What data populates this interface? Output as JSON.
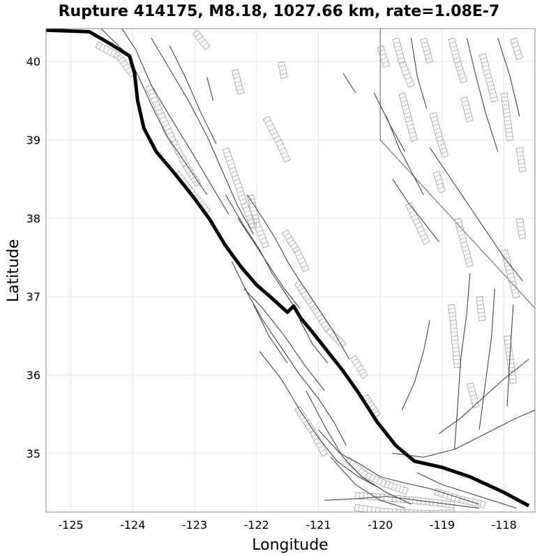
{
  "title": "Rupture 414175, M8.18, 1027.66 km, rate=1.08E-7",
  "x_axis": {
    "label": "Longitude",
    "range": [
      -125.4,
      -117.5
    ],
    "ticks": [
      -125,
      -124,
      -123,
      -122,
      -121,
      -120,
      -119,
      -118
    ],
    "tick_labels": [
      "-125",
      "-124",
      "-123",
      "-122",
      "-121",
      "-120",
      "-119",
      "-118"
    ]
  },
  "y_axis": {
    "label": "Latitude",
    "range": [
      34.25,
      40.42
    ],
    "ticks": [
      35,
      36,
      37,
      38,
      39,
      40
    ],
    "tick_labels": [
      "35",
      "36",
      "37",
      "38",
      "39",
      "40"
    ]
  },
  "grid": true,
  "colors": {
    "rupture": "#000000",
    "faults": "#444444",
    "fault_surfaces": "#aaaaaa",
    "state_border": "#777777",
    "grid": "#e4e4e4"
  },
  "rupture_trace": [
    [
      -125.4,
      40.4
    ],
    [
      -124.7,
      40.38
    ],
    [
      -124.35,
      40.22
    ],
    [
      -124.05,
      40.07
    ],
    [
      -123.97,
      39.85
    ],
    [
      -123.92,
      39.5
    ],
    [
      -123.82,
      39.15
    ],
    [
      -123.62,
      38.85
    ],
    [
      -123.3,
      38.55
    ],
    [
      -123.0,
      38.25
    ],
    [
      -122.75,
      37.98
    ],
    [
      -122.5,
      37.65
    ],
    [
      -122.25,
      37.38
    ],
    [
      -122.0,
      37.15
    ],
    [
      -121.78,
      37.0
    ],
    [
      -121.5,
      36.8
    ],
    [
      -121.4,
      36.88
    ],
    [
      -121.28,
      36.72
    ],
    [
      -121.1,
      36.55
    ],
    [
      -120.9,
      36.35
    ],
    [
      -120.6,
      36.05
    ],
    [
      -120.35,
      35.77
    ],
    [
      -120.05,
      35.4
    ],
    [
      -119.75,
      35.1
    ],
    [
      -119.45,
      34.9
    ],
    [
      -119.0,
      34.82
    ],
    [
      -118.55,
      34.7
    ],
    [
      -118.0,
      34.5
    ],
    [
      -117.6,
      34.33
    ]
  ],
  "fault_traces": [
    [
      [
        -124.55,
        40.45
      ],
      [
        -124.1,
        40.1
      ],
      [
        -123.9,
        39.8
      ],
      [
        -123.7,
        39.45
      ],
      [
        -123.45,
        39.05
      ],
      [
        -123.1,
        38.65
      ],
      [
        -122.8,
        38.3
      ]
    ],
    [
      [
        -124.2,
        40.45
      ],
      [
        -123.95,
        40.15
      ],
      [
        -123.7,
        39.7
      ],
      [
        -123.4,
        39.3
      ],
      [
        -123.05,
        38.85
      ],
      [
        -122.75,
        38.45
      ],
      [
        -122.45,
        38.05
      ]
    ],
    [
      [
        -123.7,
        40.3
      ],
      [
        -123.4,
        39.9
      ],
      [
        -123.1,
        39.5
      ],
      [
        -122.8,
        39.05
      ],
      [
        -122.55,
        38.6
      ],
      [
        -122.3,
        38.15
      ],
      [
        -122.05,
        37.8
      ]
    ],
    [
      [
        -123.4,
        40.2
      ],
      [
        -123.15,
        39.8
      ],
      [
        -122.9,
        39.35
      ],
      [
        -122.65,
        38.95
      ]
    ],
    [
      [
        -122.5,
        38.3
      ],
      [
        -122.2,
        37.9
      ],
      [
        -121.95,
        37.6
      ],
      [
        -121.75,
        37.3
      ],
      [
        -121.5,
        37.0
      ],
      [
        -121.25,
        36.7
      ]
    ],
    [
      [
        -122.3,
        38.0
      ],
      [
        -122.05,
        37.7
      ],
      [
        -121.8,
        37.4
      ],
      [
        -121.55,
        37.1
      ],
      [
        -121.3,
        36.85
      ]
    ],
    [
      [
        -122.15,
        38.3
      ],
      [
        -121.9,
        38.0
      ],
      [
        -121.7,
        37.75
      ],
      [
        -121.5,
        37.45
      ],
      [
        -121.3,
        37.2
      ],
      [
        -121.0,
        36.85
      ],
      [
        -120.75,
        36.55
      ],
      [
        -120.5,
        36.2
      ]
    ],
    [
      [
        -122.4,
        37.45
      ],
      [
        -122.15,
        37.05
      ],
      [
        -121.9,
        36.7
      ],
      [
        -121.6,
        36.35
      ],
      [
        -121.3,
        36.0
      ],
      [
        -121.0,
        35.7
      ],
      [
        -120.75,
        35.4
      ],
      [
        -120.55,
        35.1
      ]
    ],
    [
      [
        -122.2,
        37.1
      ],
      [
        -121.9,
        36.85
      ],
      [
        -121.55,
        36.5
      ],
      [
        -121.2,
        36.1
      ],
      [
        -120.9,
        35.8
      ]
    ],
    [
      [
        -121.95,
        36.3
      ],
      [
        -121.6,
        35.95
      ],
      [
        -121.3,
        35.55
      ],
      [
        -121.0,
        35.2
      ],
      [
        -120.7,
        34.9
      ],
      [
        -120.35,
        34.7
      ],
      [
        -120.0,
        34.55
      ]
    ],
    [
      [
        -121.2,
        35.8
      ],
      [
        -120.9,
        35.35
      ],
      [
        -120.6,
        34.95
      ],
      [
        -120.3,
        34.7
      ],
      [
        -119.9,
        34.5
      ],
      [
        -119.5,
        34.35
      ]
    ],
    [
      [
        -121.0,
        35.3
      ],
      [
        -120.65,
        35.0
      ],
      [
        -120.3,
        34.85
      ],
      [
        -120.0,
        34.7
      ],
      [
        -119.6,
        34.62
      ],
      [
        -119.2,
        34.55
      ],
      [
        -118.8,
        34.45
      ],
      [
        -118.4,
        34.35
      ]
    ],
    [
      [
        -120.8,
        34.95
      ],
      [
        -120.4,
        34.6
      ],
      [
        -120.0,
        34.4
      ],
      [
        -119.6,
        34.3
      ]
    ],
    [
      [
        -120.9,
        34.4
      ],
      [
        -120.4,
        34.42
      ],
      [
        -119.9,
        34.45
      ],
      [
        -119.4,
        34.4
      ],
      [
        -118.9,
        34.35
      ],
      [
        -118.4,
        34.3
      ]
    ],
    [
      [
        -119.4,
        34.75
      ],
      [
        -119.0,
        34.6
      ],
      [
        -118.6,
        34.5
      ],
      [
        -118.2,
        34.4
      ],
      [
        -117.8,
        34.3
      ]
    ],
    [
      [
        -119.8,
        35.0
      ],
      [
        -119.3,
        34.95
      ],
      [
        -118.8,
        35.05
      ],
      [
        -118.3,
        35.25
      ],
      [
        -117.8,
        35.45
      ],
      [
        -117.5,
        35.55
      ]
    ],
    [
      [
        -119.05,
        35.25
      ],
      [
        -118.7,
        35.45
      ],
      [
        -118.35,
        35.7
      ],
      [
        -118.0,
        35.95
      ],
      [
        -117.6,
        36.2
      ]
    ],
    [
      [
        -119.65,
        35.55
      ],
      [
        -119.45,
        35.9
      ],
      [
        -119.3,
        36.3
      ],
      [
        -119.2,
        36.7
      ]
    ],
    [
      [
        -118.8,
        35.05
      ],
      [
        -118.75,
        35.6
      ],
      [
        -118.7,
        36.2
      ],
      [
        -118.6,
        36.8
      ],
      [
        -118.55,
        37.3
      ]
    ],
    [
      [
        -118.4,
        35.3
      ],
      [
        -118.3,
        35.9
      ],
      [
        -118.2,
        36.5
      ],
      [
        -118.15,
        37.1
      ]
    ],
    [
      [
        -117.95,
        35.6
      ],
      [
        -117.9,
        36.3
      ],
      [
        -117.85,
        36.9
      ]
    ],
    [
      [
        -119.8,
        38.5
      ],
      [
        -119.55,
        38.2
      ],
      [
        -119.3,
        37.95
      ],
      [
        -119.05,
        37.7
      ]
    ],
    [
      [
        -119.2,
        38.9
      ],
      [
        -118.9,
        38.55
      ],
      [
        -118.6,
        38.2
      ],
      [
        -118.3,
        37.85
      ],
      [
        -118.0,
        37.5
      ],
      [
        -117.7,
        37.2
      ]
    ],
    [
      [
        -118.6,
        40.3
      ],
      [
        -118.45,
        39.8
      ],
      [
        -118.3,
        39.35
      ],
      [
        -118.1,
        38.85
      ]
    ],
    [
      [
        -119.5,
        40.3
      ],
      [
        -119.4,
        39.8
      ],
      [
        -119.25,
        39.4
      ]
    ],
    [
      [
        -118.1,
        40.3
      ],
      [
        -117.9,
        39.8
      ],
      [
        -117.75,
        39.3
      ]
    ],
    [
      [
        -120.1,
        39.6
      ],
      [
        -119.85,
        39.2
      ],
      [
        -119.6,
        38.85
      ]
    ],
    [
      [
        -119.9,
        39.3
      ],
      [
        -119.7,
        38.9
      ],
      [
        -119.5,
        38.6
      ],
      [
        -119.3,
        38.3
      ]
    ],
    [
      [
        -120.6,
        39.85
      ],
      [
        -120.4,
        39.6
      ]
    ],
    [
      [
        -122.8,
        39.8
      ],
      [
        -122.7,
        39.5
      ]
    ],
    [
      [
        -121.3,
        36.7
      ],
      [
        -121.1,
        36.4
      ],
      [
        -120.85,
        36.15
      ]
    ],
    [
      [
        -122.05,
        36.9
      ],
      [
        -121.8,
        36.5
      ],
      [
        -121.5,
        36.15
      ]
    ]
  ],
  "surface_strips": [
    [
      [
        -124.55,
        40.25
      ],
      [
        -124.2,
        40.1
      ],
      [
        -123.95,
        39.85
      ]
    ],
    [
      [
        -123.7,
        39.7
      ],
      [
        -123.5,
        39.35
      ],
      [
        -123.3,
        39.0
      ],
      [
        -123.1,
        38.7
      ],
      [
        -122.9,
        38.45
      ]
    ],
    [
      [
        -123.25,
        38.6
      ],
      [
        -122.95,
        38.3
      ],
      [
        -122.75,
        38.1
      ]
    ],
    [
      [
        -122.45,
        38.9
      ],
      [
        -122.3,
        38.55
      ],
      [
        -122.15,
        38.2
      ],
      [
        -122.0,
        37.9
      ]
    ],
    [
      [
        -122.05,
        38.3
      ],
      [
        -121.95,
        37.95
      ],
      [
        -121.8,
        37.65
      ]
    ],
    [
      [
        -121.5,
        37.85
      ],
      [
        -121.3,
        37.6
      ],
      [
        -121.15,
        37.35
      ]
    ],
    [
      [
        -121.3,
        37.2
      ],
      [
        -121.05,
        36.9
      ],
      [
        -120.8,
        36.6
      ],
      [
        -120.55,
        36.4
      ]
    ],
    [
      [
        -120.4,
        36.25
      ],
      [
        -120.2,
        36.0
      ]
    ],
    [
      [
        -120.2,
        35.75
      ],
      [
        -120.0,
        35.5
      ]
    ],
    [
      [
        -120.5,
        34.95
      ],
      [
        -120.2,
        34.75
      ],
      [
        -119.9,
        34.65
      ],
      [
        -119.55,
        34.55
      ]
    ],
    [
      [
        -120.4,
        34.5
      ],
      [
        -120.0,
        34.48
      ],
      [
        -119.6,
        34.45
      ],
      [
        -119.2,
        34.42
      ],
      [
        -118.8,
        34.38
      ]
    ],
    [
      [
        -120.4,
        34.35
      ],
      [
        -120.0,
        34.3
      ],
      [
        -119.6,
        34.28
      ],
      [
        -119.2,
        34.27
      ],
      [
        -118.8,
        34.28
      ]
    ],
    [
      [
        -119.1,
        34.55
      ],
      [
        -118.7,
        34.45
      ],
      [
        -118.3,
        34.38
      ]
    ],
    [
      [
        -121.3,
        35.6
      ],
      [
        -121.05,
        35.3
      ],
      [
        -120.85,
        35.0
      ]
    ],
    [
      [
        -122.95,
        40.4
      ],
      [
        -122.75,
        40.2
      ]
    ],
    [
      [
        -121.8,
        39.3
      ],
      [
        -121.6,
        39.0
      ],
      [
        -121.45,
        38.75
      ]
    ],
    [
      [
        -122.3,
        39.9
      ],
      [
        -122.2,
        39.6
      ]
    ],
    [
      [
        -121.55,
        40.0
      ],
      [
        -121.5,
        39.8
      ]
    ],
    [
      [
        -119.7,
        40.3
      ],
      [
        -119.6,
        40.0
      ],
      [
        -119.45,
        39.7
      ]
    ],
    [
      [
        -119.25,
        40.3
      ],
      [
        -119.15,
        40.0
      ]
    ],
    [
      [
        -118.8,
        40.3
      ],
      [
        -118.7,
        40.0
      ],
      [
        -118.6,
        39.75
      ]
    ],
    [
      [
        -118.3,
        40.1
      ],
      [
        -118.2,
        39.8
      ],
      [
        -118.1,
        39.5
      ]
    ],
    [
      [
        -117.8,
        40.3
      ],
      [
        -117.7,
        40.05
      ]
    ],
    [
      [
        -119.6,
        39.6
      ],
      [
        -119.5,
        39.3
      ],
      [
        -119.4,
        39.0
      ]
    ],
    [
      [
        -119.1,
        39.35
      ],
      [
        -119.0,
        39.05
      ],
      [
        -118.9,
        38.8
      ]
    ],
    [
      [
        -118.6,
        39.55
      ],
      [
        -118.5,
        39.25
      ]
    ],
    [
      [
        -117.95,
        39.6
      ],
      [
        -117.9,
        39.3
      ],
      [
        -117.85,
        39.0
      ]
    ],
    [
      [
        -117.7,
        38.9
      ],
      [
        -117.65,
        38.6
      ]
    ],
    [
      [
        -119.5,
        38.2
      ],
      [
        -119.35,
        37.95
      ],
      [
        -119.2,
        37.7
      ]
    ],
    [
      [
        -118.7,
        38.0
      ],
      [
        -118.6,
        37.7
      ],
      [
        -118.5,
        37.4
      ]
    ],
    [
      [
        -117.95,
        37.6
      ],
      [
        -117.85,
        37.3
      ],
      [
        -117.75,
        37.0
      ]
    ],
    [
      [
        -118.8,
        36.9
      ],
      [
        -118.75,
        36.5
      ],
      [
        -118.7,
        36.1
      ]
    ],
    [
      [
        -118.5,
        35.9
      ],
      [
        -118.4,
        35.6
      ]
    ],
    [
      [
        -117.9,
        36.5
      ],
      [
        -117.85,
        36.2
      ],
      [
        -117.8,
        35.9
      ]
    ],
    [
      [
        -118.35,
        37.0
      ],
      [
        -118.3,
        36.7
      ]
    ],
    [
      [
        -119.05,
        38.6
      ],
      [
        -118.95,
        38.35
      ]
    ],
    [
      [
        -117.7,
        38.0
      ],
      [
        -117.65,
        37.75
      ]
    ],
    [
      [
        -119.95,
        40.2
      ],
      [
        -119.85,
        39.95
      ]
    ]
  ],
  "state_border": [
    [
      -120.0,
      40.42
    ],
    [
      -120.0,
      39.0
    ],
    [
      -117.5,
      36.85
    ]
  ]
}
